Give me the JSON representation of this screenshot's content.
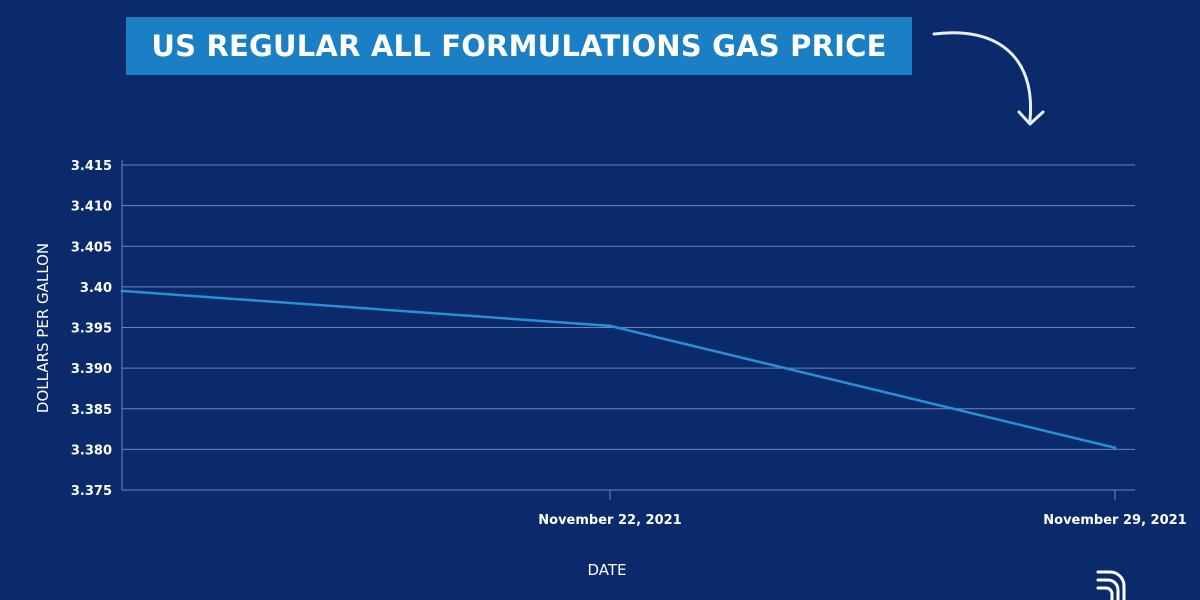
{
  "chart_data": {
    "type": "line",
    "title": "US REGULAR ALL FORMULATIONS GAS PRICE",
    "xlabel": "DATE",
    "ylabel": "DOLLARS PER GALLON",
    "x_tick_labels": [
      "November 22, 2021",
      "November 29, 2021"
    ],
    "y_tick_labels": [
      "3.415",
      "3.410",
      "3.405",
      "3.40",
      "3.395",
      "3.390",
      "3.385",
      "3.380",
      "3.375"
    ],
    "ylim": [
      3.375,
      3.415
    ],
    "grid": true,
    "series": [
      {
        "points": [
          {
            "x": "November 15, 2021",
            "y": 3.3995
          },
          {
            "x": "November 22, 2021",
            "y": 3.3952
          },
          {
            "x": "November 29, 2021",
            "y": 3.3802
          }
        ]
      }
    ],
    "colors": {
      "background": "#0a2a6b",
      "line": "#2b8fd6",
      "grid": "#6d86b6",
      "title_box": "#1a7fc4"
    }
  }
}
